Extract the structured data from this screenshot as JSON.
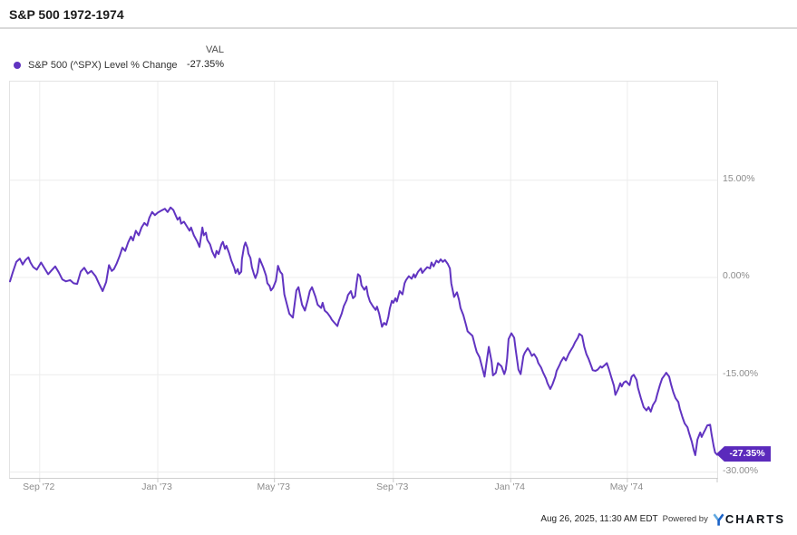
{
  "header": {
    "title": "S&P 500 1972-1974"
  },
  "legend": {
    "val_header": "VAL",
    "series_label": "S&P 500 (^SPX) Level % Change",
    "series_value": "-27.35%",
    "dot_color": "#6134c1"
  },
  "end_label": {
    "text": "-27.35%",
    "bg_color": "#5b2abc"
  },
  "footer": {
    "timestamp": "Aug 26, 2025, 11:30 AM EDT",
    "powered_by": "Powered by",
    "brand_rest": "CHARTS",
    "brand_y_light": "#62a9e0",
    "brand_y_dark": "#1c63c7"
  },
  "chart_data": {
    "type": "line",
    "title": "S&P 500 1972-1974",
    "series_name": "S&P 500 (^SPX) Level % Change",
    "unit": "percent_change",
    "line_color": "#6134c1",
    "grid_color": "#ececec",
    "tick_color": "#c9c9c9",
    "legend_position": "top-left",
    "grid": true,
    "ylim": [
      -30.9,
      30.2
    ],
    "last_value": -27.35,
    "y_ticks": [
      {
        "label": "15.00%",
        "value": 15
      },
      {
        "label": "0.00%",
        "value": 0
      },
      {
        "label": "-15.00%",
        "value": -15
      },
      {
        "label": "-30.00%",
        "value": -30
      }
    ],
    "x_ticks": [
      {
        "label": "Sep '72",
        "pos": 0.042
      },
      {
        "label": "Jan '73",
        "pos": 0.209
      },
      {
        "label": "May '73",
        "pos": 0.374
      },
      {
        "label": "Sep '73",
        "pos": 0.542
      },
      {
        "label": "Jan '74",
        "pos": 0.708
      },
      {
        "label": "May '74",
        "pos": 0.873
      }
    ],
    "x_edge_ticks": [
      1.0
    ],
    "points": [
      [
        0.0,
        -0.6
      ],
      [
        0.004,
        0.8
      ],
      [
        0.009,
        2.4
      ],
      [
        0.014,
        2.9
      ],
      [
        0.018,
        2.0
      ],
      [
        0.022,
        2.7
      ],
      [
        0.026,
        3.1
      ],
      [
        0.029,
        2.3
      ],
      [
        0.033,
        1.6
      ],
      [
        0.038,
        1.2
      ],
      [
        0.044,
        2.3
      ],
      [
        0.049,
        1.4
      ],
      [
        0.054,
        0.5
      ],
      [
        0.059,
        1.1
      ],
      [
        0.064,
        1.7
      ],
      [
        0.069,
        0.8
      ],
      [
        0.074,
        -0.3
      ],
      [
        0.079,
        -0.6
      ],
      [
        0.085,
        -0.4
      ],
      [
        0.09,
        -0.9
      ],
      [
        0.095,
        -1.0
      ],
      [
        0.1,
        0.9
      ],
      [
        0.105,
        1.5
      ],
      [
        0.11,
        0.6
      ],
      [
        0.115,
        1.0
      ],
      [
        0.121,
        0.2
      ],
      [
        0.126,
        -1.0
      ],
      [
        0.131,
        -2.1
      ],
      [
        0.136,
        -0.7
      ],
      [
        0.14,
        1.9
      ],
      [
        0.144,
        1.0
      ],
      [
        0.147,
        1.3
      ],
      [
        0.151,
        2.2
      ],
      [
        0.155,
        3.3
      ],
      [
        0.159,
        4.6
      ],
      [
        0.163,
        4.1
      ],
      [
        0.167,
        5.4
      ],
      [
        0.171,
        6.3
      ],
      [
        0.174,
        5.7
      ],
      [
        0.178,
        7.2
      ],
      [
        0.182,
        6.5
      ],
      [
        0.186,
        7.7
      ],
      [
        0.19,
        8.4
      ],
      [
        0.194,
        8.0
      ],
      [
        0.197,
        9.2
      ],
      [
        0.201,
        10.1
      ],
      [
        0.205,
        9.6
      ],
      [
        0.209,
        10.0
      ],
      [
        0.214,
        10.3
      ],
      [
        0.219,
        10.6
      ],
      [
        0.223,
        10.1
      ],
      [
        0.227,
        10.8
      ],
      [
        0.231,
        10.4
      ],
      [
        0.235,
        9.4
      ],
      [
        0.237,
        8.9
      ],
      [
        0.24,
        9.3
      ],
      [
        0.242,
        8.3
      ],
      [
        0.246,
        8.6
      ],
      [
        0.25,
        7.9
      ],
      [
        0.254,
        7.2
      ],
      [
        0.256,
        7.7
      ],
      [
        0.26,
        6.5
      ],
      [
        0.265,
        5.5
      ],
      [
        0.268,
        4.7
      ],
      [
        0.272,
        7.7
      ],
      [
        0.274,
        6.5
      ],
      [
        0.277,
        6.9
      ],
      [
        0.279,
        5.8
      ],
      [
        0.283,
        5.1
      ],
      [
        0.286,
        4.0
      ],
      [
        0.29,
        3.1
      ],
      [
        0.292,
        4.1
      ],
      [
        0.295,
        3.6
      ],
      [
        0.299,
        5.1
      ],
      [
        0.301,
        5.5
      ],
      [
        0.304,
        4.4
      ],
      [
        0.306,
        4.9
      ],
      [
        0.31,
        3.7
      ],
      [
        0.313,
        2.6
      ],
      [
        0.317,
        1.5
      ],
      [
        0.319,
        0.7
      ],
      [
        0.322,
        1.3
      ],
      [
        0.324,
        0.5
      ],
      [
        0.327,
        0.9
      ],
      [
        0.328,
        2.8
      ],
      [
        0.331,
        4.8
      ],
      [
        0.333,
        5.4
      ],
      [
        0.336,
        4.5
      ],
      [
        0.337,
        3.7
      ],
      [
        0.34,
        3.0
      ],
      [
        0.342,
        1.6
      ],
      [
        0.345,
        0.5
      ],
      [
        0.347,
        -0.1
      ],
      [
        0.35,
        0.8
      ],
      [
        0.353,
        2.9
      ],
      [
        0.358,
        1.6
      ],
      [
        0.362,
        0.3
      ],
      [
        0.364,
        -0.9
      ],
      [
        0.367,
        -1.3
      ],
      [
        0.369,
        -2.0
      ],
      [
        0.372,
        -1.6
      ],
      [
        0.376,
        -0.5
      ],
      [
        0.379,
        1.8
      ],
      [
        0.382,
        0.9
      ],
      [
        0.385,
        0.5
      ],
      [
        0.388,
        -2.6
      ],
      [
        0.395,
        -5.6
      ],
      [
        0.4,
        -6.2
      ],
      [
        0.405,
        -2.0
      ],
      [
        0.408,
        -1.5
      ],
      [
        0.413,
        -4.2
      ],
      [
        0.417,
        -5.1
      ],
      [
        0.421,
        -3.5
      ],
      [
        0.424,
        -2.1
      ],
      [
        0.427,
        -1.5
      ],
      [
        0.432,
        -3.0
      ],
      [
        0.435,
        -4.2
      ],
      [
        0.44,
        -4.7
      ],
      [
        0.442,
        -3.9
      ],
      [
        0.445,
        -5.1
      ],
      [
        0.449,
        -5.5
      ],
      [
        0.453,
        -6.1
      ],
      [
        0.455,
        -6.5
      ],
      [
        0.459,
        -7.0
      ],
      [
        0.463,
        -7.5
      ],
      [
        0.465,
        -6.7
      ],
      [
        0.469,
        -5.6
      ],
      [
        0.472,
        -4.4
      ],
      [
        0.476,
        -3.5
      ],
      [
        0.478,
        -2.7
      ],
      [
        0.482,
        -2.1
      ],
      [
        0.485,
        -3.2
      ],
      [
        0.488,
        -2.9
      ],
      [
        0.49,
        -1.0
      ],
      [
        0.492,
        0.5
      ],
      [
        0.495,
        0.2
      ],
      [
        0.497,
        -1.2
      ],
      [
        0.501,
        -1.9
      ],
      [
        0.504,
        -1.4
      ],
      [
        0.506,
        -2.7
      ],
      [
        0.509,
        -3.7
      ],
      [
        0.513,
        -4.4
      ],
      [
        0.517,
        -5.0
      ],
      [
        0.519,
        -4.5
      ],
      [
        0.522,
        -5.6
      ],
      [
        0.526,
        -7.6
      ],
      [
        0.529,
        -7.0
      ],
      [
        0.532,
        -7.3
      ],
      [
        0.535,
        -6.1
      ],
      [
        0.537,
        -4.8
      ],
      [
        0.54,
        -3.6
      ],
      [
        0.542,
        -3.9
      ],
      [
        0.545,
        -3.2
      ],
      [
        0.547,
        -3.7
      ],
      [
        0.551,
        -2.1
      ],
      [
        0.555,
        -2.6
      ],
      [
        0.558,
        -0.9
      ],
      [
        0.56,
        -0.4
      ],
      [
        0.564,
        0.2
      ],
      [
        0.568,
        -0.2
      ],
      [
        0.571,
        0.5
      ],
      [
        0.573,
        0.0
      ],
      [
        0.577,
        0.9
      ],
      [
        0.581,
        1.4
      ],
      [
        0.583,
        0.7
      ],
      [
        0.586,
        1.1
      ],
      [
        0.59,
        1.6
      ],
      [
        0.594,
        1.4
      ],
      [
        0.596,
        2.3
      ],
      [
        0.599,
        1.7
      ],
      [
        0.603,
        2.6
      ],
      [
        0.606,
        2.3
      ],
      [
        0.609,
        2.8
      ],
      [
        0.612,
        2.4
      ],
      [
        0.615,
        2.7
      ],
      [
        0.619,
        2.1
      ],
      [
        0.622,
        1.4
      ],
      [
        0.624,
        -0.9
      ],
      [
        0.628,
        -3.0
      ],
      [
        0.632,
        -2.3
      ],
      [
        0.635,
        -3.5
      ],
      [
        0.637,
        -4.7
      ],
      [
        0.641,
        -5.8
      ],
      [
        0.645,
        -7.4
      ],
      [
        0.647,
        -8.3
      ],
      [
        0.65,
        -8.6
      ],
      [
        0.654,
        -9.0
      ],
      [
        0.658,
        -10.7
      ],
      [
        0.66,
        -11.5
      ],
      [
        0.664,
        -12.3
      ],
      [
        0.671,
        -15.3
      ],
      [
        0.674,
        -13.0
      ],
      [
        0.677,
        -10.7
      ],
      [
        0.681,
        -13.0
      ],
      [
        0.683,
        -15.1
      ],
      [
        0.687,
        -14.7
      ],
      [
        0.69,
        -13.2
      ],
      [
        0.695,
        -13.7
      ],
      [
        0.699,
        -14.9
      ],
      [
        0.701,
        -14.2
      ],
      [
        0.703,
        -12.5
      ],
      [
        0.705,
        -9.5
      ],
      [
        0.709,
        -8.6
      ],
      [
        0.713,
        -9.3
      ],
      [
        0.715,
        -11.1
      ],
      [
        0.719,
        -14.2
      ],
      [
        0.722,
        -14.9
      ],
      [
        0.726,
        -12.1
      ],
      [
        0.728,
        -11.6
      ],
      [
        0.732,
        -10.9
      ],
      [
        0.735,
        -11.4
      ],
      [
        0.738,
        -12.1
      ],
      [
        0.741,
        -11.8
      ],
      [
        0.745,
        -12.5
      ],
      [
        0.747,
        -13.2
      ],
      [
        0.751,
        -13.9
      ],
      [
        0.754,
        -14.7
      ],
      [
        0.758,
        -15.6
      ],
      [
        0.76,
        -16.3
      ],
      [
        0.764,
        -17.2
      ],
      [
        0.767,
        -16.5
      ],
      [
        0.771,
        -15.3
      ],
      [
        0.773,
        -14.4
      ],
      [
        0.777,
        -13.5
      ],
      [
        0.779,
        -13.0
      ],
      [
        0.783,
        -12.3
      ],
      [
        0.786,
        -12.8
      ],
      [
        0.79,
        -11.8
      ],
      [
        0.792,
        -11.4
      ],
      [
        0.796,
        -10.7
      ],
      [
        0.799,
        -10.0
      ],
      [
        0.803,
        -9.3
      ],
      [
        0.805,
        -8.7
      ],
      [
        0.809,
        -9.0
      ],
      [
        0.812,
        -10.7
      ],
      [
        0.815,
        -11.8
      ],
      [
        0.818,
        -12.5
      ],
      [
        0.822,
        -13.7
      ],
      [
        0.824,
        -14.3
      ],
      [
        0.828,
        -14.4
      ],
      [
        0.831,
        -14.2
      ],
      [
        0.835,
        -13.7
      ],
      [
        0.837,
        -13.9
      ],
      [
        0.841,
        -13.5
      ],
      [
        0.844,
        -13.2
      ],
      [
        0.847,
        -14.2
      ],
      [
        0.85,
        -15.3
      ],
      [
        0.854,
        -16.7
      ],
      [
        0.856,
        -18.1
      ],
      [
        0.86,
        -17.2
      ],
      [
        0.863,
        -16.3
      ],
      [
        0.865,
        -16.8
      ],
      [
        0.868,
        -16.2
      ],
      [
        0.871,
        -16.0
      ],
      [
        0.876,
        -16.6
      ],
      [
        0.879,
        -15.3
      ],
      [
        0.882,
        -15.0
      ],
      [
        0.886,
        -15.8
      ],
      [
        0.888,
        -17.0
      ],
      [
        0.892,
        -18.6
      ],
      [
        0.896,
        -20.0
      ],
      [
        0.9,
        -20.5
      ],
      [
        0.903,
        -20.0
      ],
      [
        0.906,
        -20.7
      ],
      [
        0.909,
        -19.7
      ],
      [
        0.913,
        -19.0
      ],
      [
        0.915,
        -18.1
      ],
      [
        0.919,
        -16.6
      ],
      [
        0.922,
        -15.6
      ],
      [
        0.926,
        -15.0
      ],
      [
        0.928,
        -14.7
      ],
      [
        0.932,
        -15.3
      ],
      [
        0.935,
        -16.6
      ],
      [
        0.938,
        -17.7
      ],
      [
        0.941,
        -18.6
      ],
      [
        0.945,
        -19.2
      ],
      [
        0.947,
        -20.2
      ],
      [
        0.951,
        -21.6
      ],
      [
        0.954,
        -22.5
      ],
      [
        0.958,
        -23.1
      ],
      [
        0.96,
        -23.9
      ],
      [
        0.964,
        -25.3
      ],
      [
        0.967,
        -26.7
      ],
      [
        0.969,
        -27.4
      ],
      [
        0.972,
        -25.0
      ],
      [
        0.976,
        -23.9
      ],
      [
        0.978,
        -24.6
      ],
      [
        0.981,
        -23.9
      ],
      [
        0.983,
        -23.5
      ],
      [
        0.986,
        -22.8
      ],
      [
        0.99,
        -22.7
      ],
      [
        0.992,
        -24.2
      ],
      [
        0.995,
        -26.0
      ],
      [
        0.997,
        -27.0
      ],
      [
        1.0,
        -27.35
      ]
    ]
  }
}
